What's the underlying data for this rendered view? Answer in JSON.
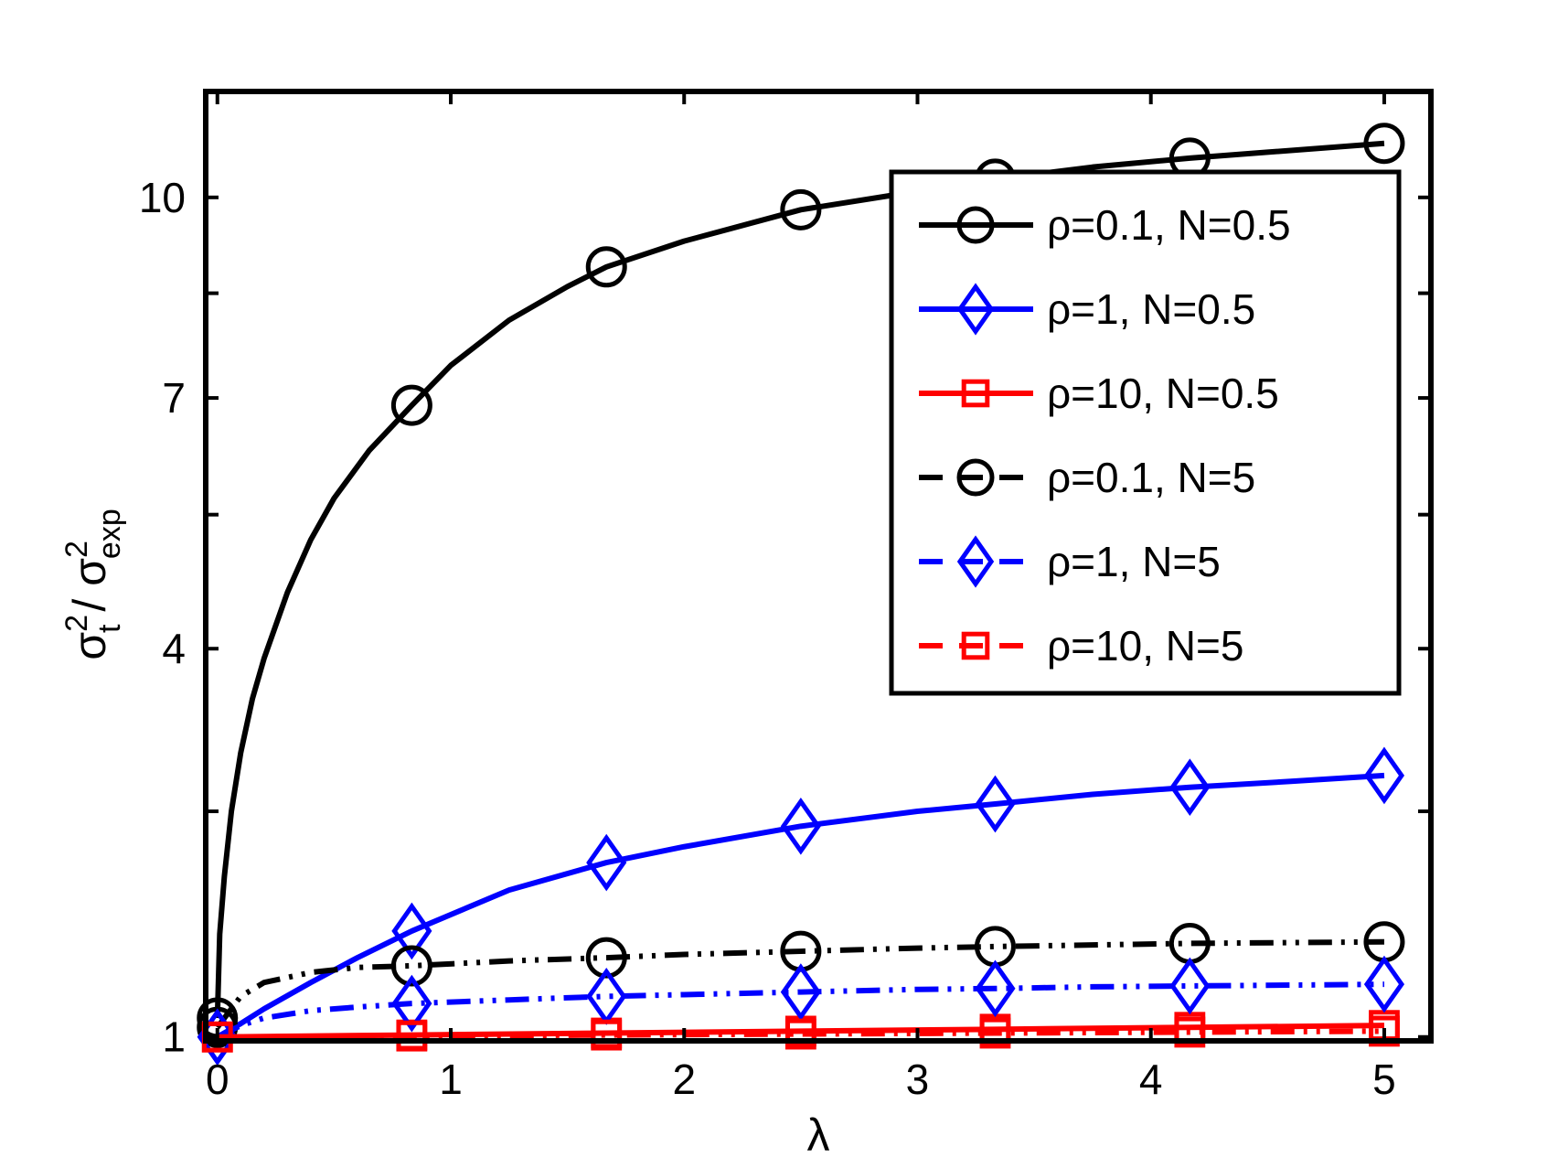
{
  "chart_data": {
    "type": "line",
    "xlabel": "λ",
    "ylabel": {
      "base1": "σ",
      "sup1": "2",
      "sub1": "t",
      "sep": " / ",
      "base2": "σ",
      "sup2": "2",
      "sub2": "exp"
    },
    "xlim": [
      -0.05,
      5.2
    ],
    "ylim": [
      0.98,
      11.8
    ],
    "y_scale": "sqrt",
    "xticks": [
      0,
      1,
      2,
      3,
      4,
      5
    ],
    "yticks": [
      1,
      4,
      7,
      10
    ],
    "ytick_unlabeled": [
      2.5,
      5.5,
      8.5
    ],
    "grid": false,
    "legend_position": "top-right",
    "markers_x": [
      0,
      0.833,
      1.667,
      2.5,
      3.333,
      4.167,
      5
    ],
    "series": [
      {
        "name": "ρ=0.1, N=0.5",
        "color": "#000000",
        "line": "solid",
        "marker": "circle",
        "x": [
          0,
          0.01,
          0.03,
          0.06,
          0.1,
          0.15,
          0.2,
          0.3,
          0.4,
          0.5,
          0.65,
          0.833,
          1.0,
          1.25,
          1.5,
          1.667,
          2.0,
          2.5,
          3.0,
          3.333,
          3.75,
          4.167,
          4.5,
          5
        ],
        "y": [
          1.1,
          1.6,
          2.0,
          2.5,
          3.0,
          3.5,
          3.9,
          4.6,
          5.2,
          5.7,
          6.3,
          6.9,
          7.45,
          8.1,
          8.6,
          8.9,
          9.3,
          9.8,
          10.1,
          10.3,
          10.5,
          10.65,
          10.75,
          10.9
        ]
      },
      {
        "name": "ρ=1, N=0.5",
        "color": "#0000ff",
        "line": "solid",
        "marker": "diamond",
        "x": [
          0,
          0.1,
          0.2,
          0.4,
          0.6,
          0.833,
          1.25,
          1.667,
          2.0,
          2.5,
          3.0,
          3.333,
          3.75,
          4.167,
          4.6,
          5
        ],
        "y": [
          1.0,
          1.07,
          1.15,
          1.3,
          1.45,
          1.62,
          1.9,
          2.1,
          2.22,
          2.38,
          2.5,
          2.56,
          2.64,
          2.7,
          2.75,
          2.8
        ]
      },
      {
        "name": "ρ=10, N=0.5",
        "color": "#ff0000",
        "line": "solid",
        "marker": "square",
        "x": [
          0,
          0.833,
          1.667,
          2.5,
          3.333,
          4.167,
          5
        ],
        "y": [
          1.0,
          1.01,
          1.02,
          1.03,
          1.04,
          1.05,
          1.06
        ]
      },
      {
        "name": "ρ=0.1, N=5",
        "color": "#000000",
        "line": "dashdot",
        "marker": "circle",
        "x": [
          0,
          0.1,
          0.2,
          0.4,
          0.6,
          0.833,
          1.25,
          1.667,
          2.0,
          2.5,
          3.0,
          3.333,
          3.75,
          4.167,
          4.6,
          5
        ],
        "y": [
          1.05,
          1.22,
          1.3,
          1.36,
          1.39,
          1.4,
          1.43,
          1.45,
          1.47,
          1.49,
          1.51,
          1.52,
          1.53,
          1.54,
          1.545,
          1.55
        ]
      },
      {
        "name": "ρ=1, N=5",
        "color": "#0000ff",
        "line": "dashdot",
        "marker": "diamond",
        "x": [
          0,
          0.1,
          0.2,
          0.4,
          0.6,
          0.833,
          1.25,
          1.667,
          2.0,
          2.5,
          3.0,
          3.333,
          3.75,
          4.167,
          4.6,
          5
        ],
        "y": [
          1.0,
          1.06,
          1.1,
          1.14,
          1.16,
          1.18,
          1.2,
          1.22,
          1.23,
          1.245,
          1.26,
          1.265,
          1.275,
          1.28,
          1.285,
          1.29
        ]
      },
      {
        "name": "ρ=10, N=5",
        "color": "#ff0000",
        "line": "dashdot",
        "marker": "square",
        "x": [
          0,
          0.833,
          1.667,
          2.5,
          3.333,
          4.167,
          5
        ],
        "y": [
          1.0,
          1.005,
          1.01,
          1.015,
          1.02,
          1.025,
          1.03
        ]
      }
    ]
  }
}
